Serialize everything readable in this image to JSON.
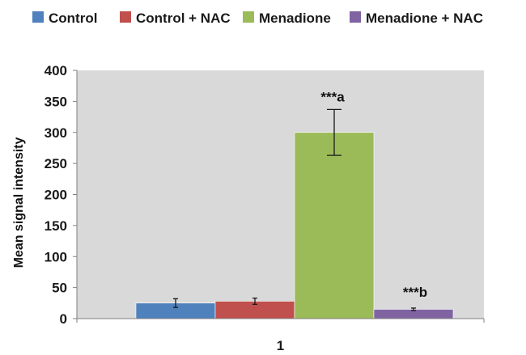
{
  "chart_data": {
    "type": "bar",
    "title": "",
    "xlabel": "",
    "ylabel": "Mean signal intensity",
    "ylim": [
      0,
      400
    ],
    "yticks": [
      0,
      50,
      100,
      150,
      200,
      250,
      300,
      350,
      400
    ],
    "categories": [
      "1"
    ],
    "grid": false,
    "legend_position": "top",
    "series": [
      {
        "name": "Control",
        "values": [
          25
        ],
        "error": [
          7
        ],
        "color": "#4f81bd",
        "annotation": ""
      },
      {
        "name": "Control + NAC",
        "values": [
          28
        ],
        "error": [
          5
        ],
        "color": "#c0504d",
        "annotation": ""
      },
      {
        "name": "Menadione",
        "values": [
          300
        ],
        "error": [
          37
        ],
        "color": "#9bbb59",
        "annotation": "***a"
      },
      {
        "name": "Menadione + NAC",
        "values": [
          15
        ],
        "error": [
          2
        ],
        "color": "#8064a2",
        "annotation": "***b"
      }
    ],
    "plot_background": "#d9d9d9"
  }
}
